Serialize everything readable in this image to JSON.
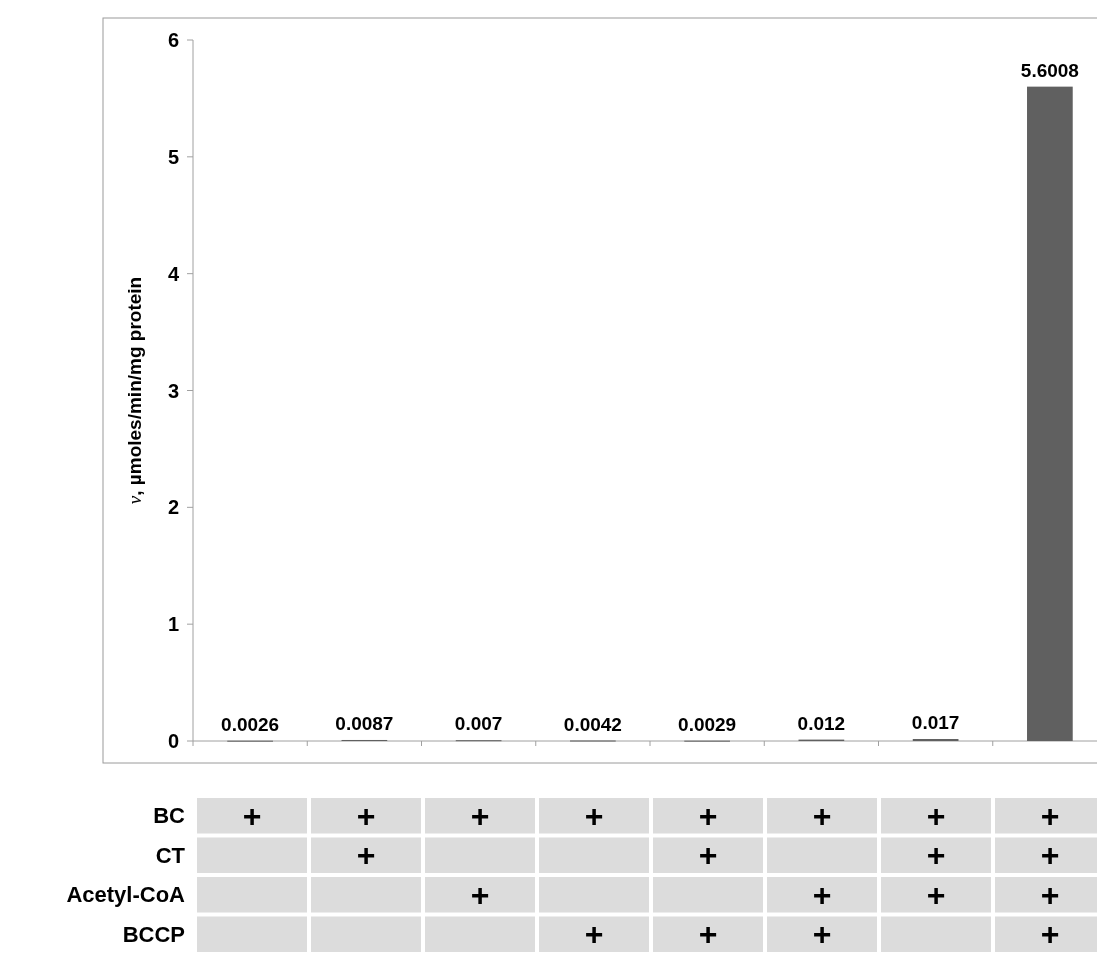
{
  "chart_data": [
    {
      "type": "bar",
      "categories": [
        null,
        null,
        null,
        null,
        null,
        null,
        null,
        null
      ],
      "values": [
        0.0026,
        0.0087,
        0.007,
        0.0042,
        0.0029,
        0.012,
        0.017,
        5.6008
      ],
      "color": "#606060",
      "ylim": [
        0,
        6
      ],
      "yticks": [
        0,
        1,
        2,
        3,
        4,
        5,
        6
      ],
      "data_labels": true,
      "ylabel": "v, µmoles/min/mg protein"
    },
    {
      "type": "heatmap",
      "categories": [
        null,
        null,
        null,
        null,
        null,
        null,
        null,
        null
      ],
      "y_categories": [
        "BC",
        "CT",
        "Acetyl-CoA",
        "BCCP"
      ],
      "cells": [
        [
          null,
          null,
          null,
          null,
          null,
          null,
          null,
          null
        ],
        [
          null,
          null,
          null,
          null,
          null,
          null,
          null,
          null
        ],
        [
          null,
          null,
          null,
          null,
          null,
          null,
          null,
          null
        ],
        [
          null,
          null,
          null,
          null,
          null,
          null,
          null,
          null
        ]
      ],
      "cell_labels": [
        [
          "+",
          "+",
          "+",
          "+",
          "+",
          "+",
          "+",
          "+"
        ],
        [
          null,
          "+",
          null,
          null,
          "+",
          null,
          "+",
          "+"
        ],
        [
          null,
          null,
          "+",
          null,
          null,
          "+",
          "+",
          "+"
        ],
        [
          null,
          null,
          null,
          "+",
          "+",
          "+",
          null,
          "+"
        ]
      ]
    }
  ]
}
